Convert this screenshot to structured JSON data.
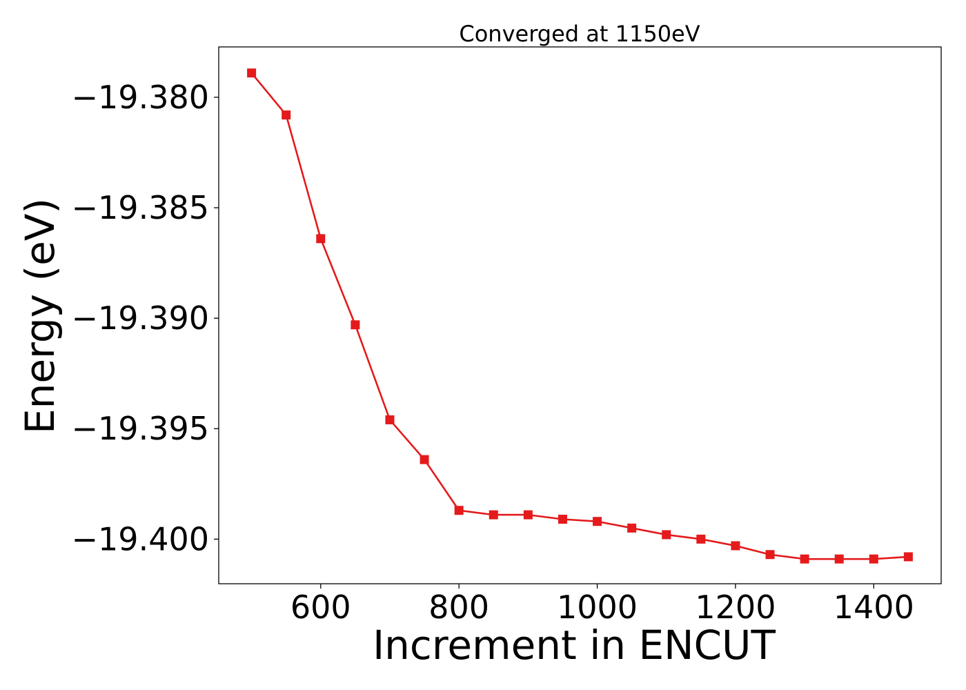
{
  "chart_data": {
    "type": "line",
    "title": "Converged at 1150eV",
    "xlabel": "Increment in ENCUT",
    "ylabel": "Energy (eV)",
    "xlim": [
      452.5,
      1497.5
    ],
    "ylim": [
      -19.40202,
      -19.37772
    ],
    "x_ticks": [
      600,
      800,
      1000,
      1200,
      1400
    ],
    "x_tick_labels": [
      "600",
      "800",
      "1000",
      "1200",
      "1400"
    ],
    "y_ticks": [
      -19.38,
      -19.385,
      -19.39,
      -19.395,
      -19.4
    ],
    "y_tick_labels": [
      "−19.380",
      "−19.385",
      "−19.390",
      "−19.395",
      "−19.400"
    ],
    "grid": false,
    "series": [
      {
        "color": "#e41a1c",
        "marker": "square",
        "x": [
          500,
          550,
          600,
          650,
          700,
          750,
          800,
          850,
          900,
          950,
          1000,
          1050,
          1100,
          1150,
          1200,
          1250,
          1300,
          1350,
          1400,
          1450
        ],
        "y": [
          -19.3789,
          -19.3808,
          -19.3864,
          -19.3903,
          -19.3946,
          -19.3964,
          -19.3987,
          -19.3989,
          -19.3989,
          -19.3991,
          -19.3992,
          -19.3995,
          -19.3998,
          -19.4,
          -19.4003,
          -19.4007,
          -19.4009,
          -19.4009,
          -19.4009,
          -19.4008
        ]
      }
    ]
  }
}
